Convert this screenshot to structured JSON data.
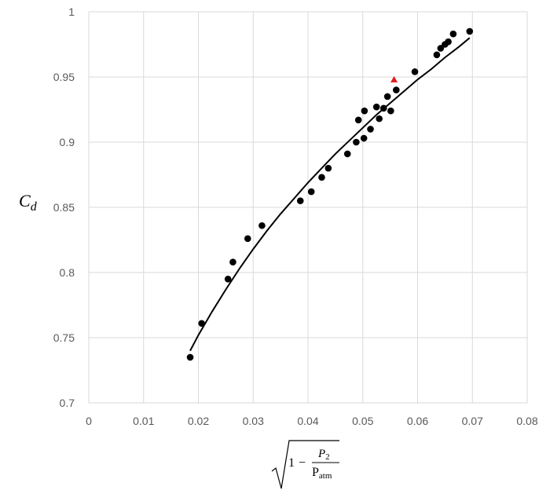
{
  "chart_data": {
    "type": "scatter",
    "title": "",
    "xlim": [
      0,
      0.08
    ],
    "ylim": [
      0.7,
      1.0
    ],
    "x_ticks": [
      0,
      0.01,
      0.02,
      0.03,
      0.04,
      0.05,
      0.06,
      0.07,
      0.08
    ],
    "x_tick_labels": [
      "0",
      "0.01",
      "0.02",
      "0.03",
      "0.04",
      "0.05",
      "0.06",
      "0.07",
      "0.08"
    ],
    "y_ticks": [
      0.7,
      0.75,
      0.8,
      0.85,
      0.9,
      0.95,
      1.0
    ],
    "y_tick_labels": [
      "0.7",
      "0.75",
      "0.8",
      "0.85",
      "0.9",
      "0.95",
      "1"
    ],
    "grid": true,
    "ylabel": {
      "main": "C",
      "sub": "d"
    },
    "xlabel": {
      "one": "1",
      "minus": "−",
      "numerator_main": "P",
      "numerator_sub": "2",
      "denominator_main": "P",
      "denominator_sub": "atm"
    },
    "series": [
      {
        "marker": "circle",
        "color": "#000000",
        "points": [
          [
            0.0185,
            0.735
          ],
          [
            0.0206,
            0.761
          ],
          [
            0.0254,
            0.795
          ],
          [
            0.0263,
            0.808
          ],
          [
            0.029,
            0.826
          ],
          [
            0.0316,
            0.836
          ],
          [
            0.0386,
            0.855
          ],
          [
            0.0406,
            0.862
          ],
          [
            0.0425,
            0.873
          ],
          [
            0.0437,
            0.88
          ],
          [
            0.0472,
            0.891
          ],
          [
            0.0488,
            0.9
          ],
          [
            0.0492,
            0.917
          ],
          [
            0.0502,
            0.903
          ],
          [
            0.0503,
            0.924
          ],
          [
            0.0514,
            0.91
          ],
          [
            0.0525,
            0.927
          ],
          [
            0.053,
            0.918
          ],
          [
            0.0538,
            0.926
          ],
          [
            0.0545,
            0.935
          ],
          [
            0.0551,
            0.924
          ],
          [
            0.0561,
            0.94
          ],
          [
            0.0595,
            0.954
          ],
          [
            0.0635,
            0.967
          ],
          [
            0.0642,
            0.972
          ],
          [
            0.065,
            0.975
          ],
          [
            0.0656,
            0.977
          ],
          [
            0.0665,
            0.983
          ],
          [
            0.0695,
            0.985
          ]
        ]
      },
      {
        "marker": "triangle",
        "color": "#e31b1b",
        "points": [
          [
            0.0557,
            0.948
          ]
        ]
      },
      {
        "marker": "line",
        "color": "#000000",
        "points": [
          [
            0.0185,
            0.74
          ],
          [
            0.02,
            0.752
          ],
          [
            0.0225,
            0.77
          ],
          [
            0.025,
            0.787
          ],
          [
            0.0275,
            0.803
          ],
          [
            0.03,
            0.818
          ],
          [
            0.0325,
            0.832
          ],
          [
            0.035,
            0.845
          ],
          [
            0.0375,
            0.857
          ],
          [
            0.04,
            0.869
          ],
          [
            0.0425,
            0.88
          ],
          [
            0.045,
            0.891
          ],
          [
            0.0475,
            0.901
          ],
          [
            0.05,
            0.911
          ],
          [
            0.0525,
            0.921
          ],
          [
            0.055,
            0.93
          ],
          [
            0.0575,
            0.939
          ],
          [
            0.06,
            0.948
          ],
          [
            0.0625,
            0.956
          ],
          [
            0.065,
            0.965
          ],
          [
            0.0675,
            0.973
          ],
          [
            0.0695,
            0.98
          ]
        ]
      }
    ]
  }
}
